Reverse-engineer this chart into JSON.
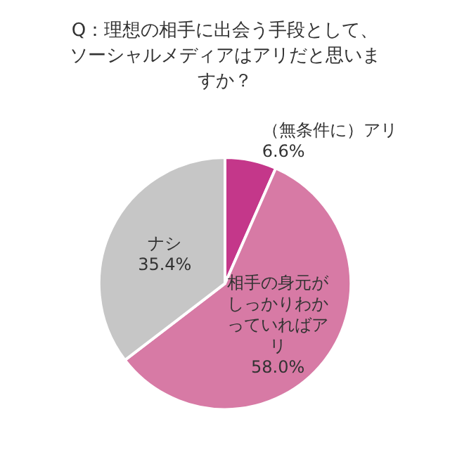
{
  "chart_data": {
    "type": "pie",
    "title": "Q：理想の相手に出会う手段として、ソーシャルメディアはアリだと思いますか？",
    "categories": [
      "（無条件に）アリ",
      "相手の身元がしっかりわかっていればアリ",
      "ナシ"
    ],
    "values": [
      6.6,
      58.0,
      35.4
    ],
    "colors": [
      "#c4378a",
      "#d77aa5",
      "#c6c6c6"
    ],
    "value_labels": [
      "6.6%",
      "58.0%",
      "35.4%"
    ],
    "legend": false
  }
}
